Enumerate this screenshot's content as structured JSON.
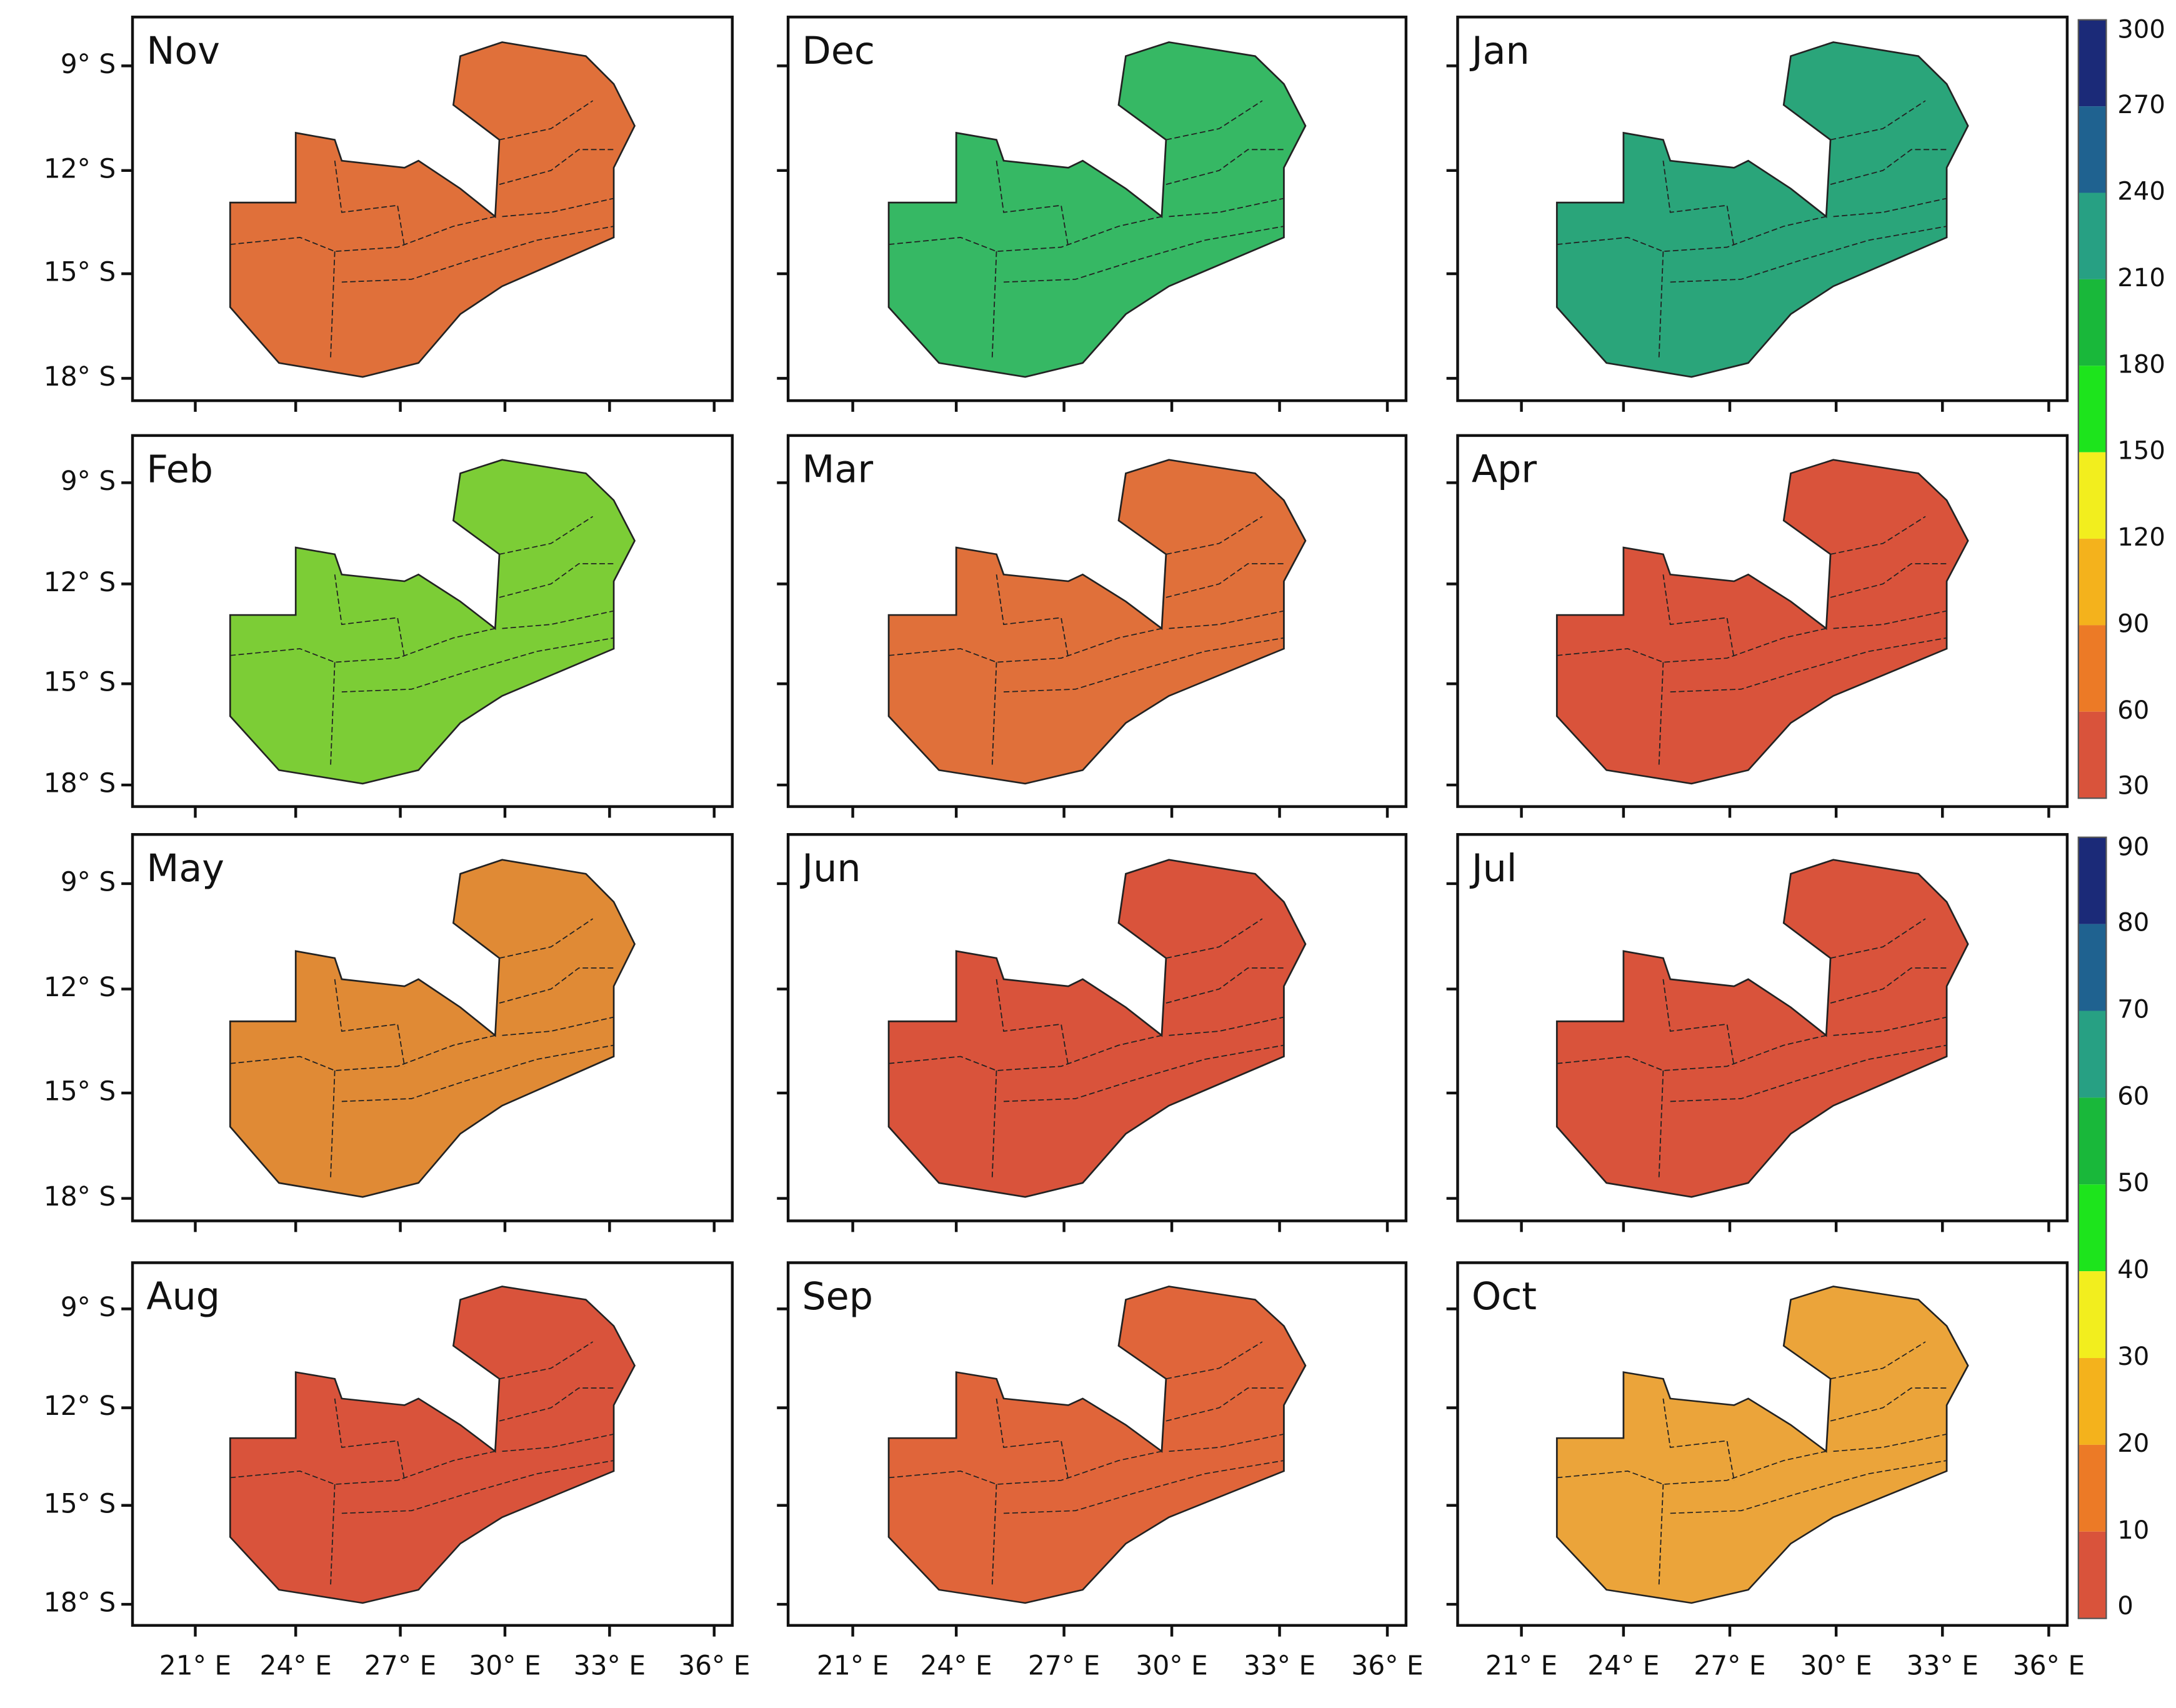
{
  "panels": [
    {
      "label": "Nov",
      "fill": "#e0703a"
    },
    {
      "label": "Dec",
      "fill": "#36b864"
    },
    {
      "label": "Jan",
      "fill": "#2aa57a"
    },
    {
      "label": "Feb",
      "fill": "#7ccd36"
    },
    {
      "label": "Mar",
      "fill": "#e0703a"
    },
    {
      "label": "Apr",
      "fill": "#d9533b"
    },
    {
      "label": "May",
      "fill": "#e08a35"
    },
    {
      "label": "Jun",
      "fill": "#d9533b"
    },
    {
      "label": "Jul",
      "fill": "#d9533b"
    },
    {
      "label": "Aug",
      "fill": "#d9533b"
    },
    {
      "label": "Sep",
      "fill": "#e0653a"
    },
    {
      "label": "Oct",
      "fill": "#eba43a"
    }
  ],
  "y_ticks": [
    "9° S",
    "12° S",
    "15° S",
    "18° S"
  ],
  "x_ticks": [
    "21° E",
    "24° E",
    "27° E",
    "30° E",
    "33° E",
    "36° E"
  ],
  "colorbars": [
    {
      "labels": [
        300,
        270,
        240,
        210,
        180,
        150,
        120,
        90,
        60,
        30
      ]
    },
    {
      "labels": [
        90,
        80,
        70,
        60,
        50,
        40,
        30,
        20,
        10,
        0
      ]
    }
  ],
  "colorbar_colors": [
    "#1b2a78",
    "#1f6290",
    "#27a083",
    "#19b83a",
    "#1de41c",
    "#f2ee1e",
    "#f4b21c",
    "#ec7a26",
    "#d9533b"
  ]
}
